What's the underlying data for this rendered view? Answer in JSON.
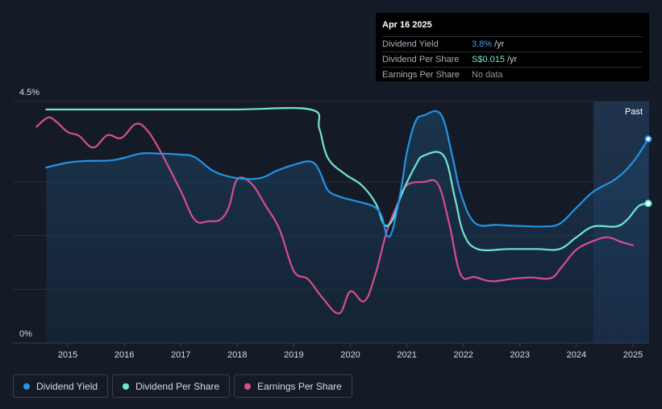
{
  "tooltip": {
    "date": "Apr 16 2025",
    "rows": [
      {
        "name": "Dividend Yield",
        "value": "3.8%",
        "unit": "/yr"
      },
      {
        "name": "Dividend Per Share",
        "value": "S$0.015",
        "unit": "/yr"
      },
      {
        "name": "Earnings Per Share",
        "value": "No data",
        "unit": ""
      }
    ]
  },
  "past_label": "Past",
  "legend": [
    {
      "name": "Dividend Yield",
      "color": "#2394e6"
    },
    {
      "name": "Dividend Per Share",
      "color": "#6ee6d0"
    },
    {
      "name": "Earnings Per Share",
      "color": "#d64d8e"
    }
  ],
  "chart_data": {
    "type": "line",
    "title": "",
    "xlabel": "",
    "ylabel": "",
    "ylim": [
      0,
      4.5
    ],
    "y_tick_labels": [
      "4.5%",
      "0%"
    ],
    "x_tick_labels": [
      "2015",
      "2016",
      "2017",
      "2018",
      "2019",
      "2020",
      "2021",
      "2022",
      "2023",
      "2024",
      "2025"
    ],
    "grid": true,
    "legend_position": "bottom-left",
    "past_region_start": 2024.3,
    "series": [
      {
        "name": "Dividend Yield",
        "color": "#2394e6",
        "area": true,
        "points": [
          [
            2014.62,
            3.27
          ],
          [
            2015,
            3.36
          ],
          [
            2015.3,
            3.39
          ],
          [
            2015.75,
            3.4
          ],
          [
            2016,
            3.45
          ],
          [
            2016.3,
            3.53
          ],
          [
            2016.6,
            3.53
          ],
          [
            2017,
            3.51
          ],
          [
            2017.25,
            3.46
          ],
          [
            2017.6,
            3.19
          ],
          [
            2018,
            3.07
          ],
          [
            2018.4,
            3.07
          ],
          [
            2018.7,
            3.21
          ],
          [
            2019,
            3.32
          ],
          [
            2019.3,
            3.38
          ],
          [
            2019.45,
            3.21
          ],
          [
            2019.6,
            2.85
          ],
          [
            2019.8,
            2.73
          ],
          [
            2020,
            2.67
          ],
          [
            2020.4,
            2.55
          ],
          [
            2020.55,
            2.37
          ],
          [
            2020.65,
            2.0
          ],
          [
            2020.75,
            2.12
          ],
          [
            2020.9,
            2.88
          ],
          [
            2021,
            3.55
          ],
          [
            2021.15,
            4.12
          ],
          [
            2021.3,
            4.24
          ],
          [
            2021.6,
            4.26
          ],
          [
            2021.8,
            3.5
          ],
          [
            2021.95,
            2.8
          ],
          [
            2022.2,
            2.24
          ],
          [
            2022.6,
            2.2
          ],
          [
            2023,
            2.18
          ],
          [
            2023.4,
            2.17
          ],
          [
            2023.7,
            2.22
          ],
          [
            2024,
            2.52
          ],
          [
            2024.3,
            2.82
          ],
          [
            2024.7,
            3.06
          ],
          [
            2025,
            3.37
          ],
          [
            2025.27,
            3.8
          ]
        ]
      },
      {
        "name": "Dividend Per Share",
        "color": "#6ee6d0",
        "area": false,
        "points": [
          [
            2014.62,
            4.35
          ],
          [
            2016,
            4.35
          ],
          [
            2017,
            4.35
          ],
          [
            2018,
            4.35
          ],
          [
            2019.3,
            4.35
          ],
          [
            2019.45,
            4.0
          ],
          [
            2019.6,
            3.45
          ],
          [
            2019.9,
            3.15
          ],
          [
            2020.2,
            2.94
          ],
          [
            2020.45,
            2.6
          ],
          [
            2020.6,
            2.2
          ],
          [
            2020.75,
            2.3
          ],
          [
            2020.9,
            2.75
          ],
          [
            2021.15,
            3.3
          ],
          [
            2021.3,
            3.49
          ],
          [
            2021.65,
            3.49
          ],
          [
            2021.85,
            2.7
          ],
          [
            2022,
            2.05
          ],
          [
            2022.25,
            1.75
          ],
          [
            2022.8,
            1.75
          ],
          [
            2023.3,
            1.75
          ],
          [
            2023.7,
            1.75
          ],
          [
            2024,
            1.97
          ],
          [
            2024.3,
            2.17
          ],
          [
            2024.7,
            2.17
          ],
          [
            2024.9,
            2.3
          ],
          [
            2025.1,
            2.55
          ],
          [
            2025.27,
            2.6
          ]
        ]
      },
      {
        "name": "Earnings Per Share",
        "color": "#d64d8e",
        "area": false,
        "points": [
          [
            2014.45,
            4.03
          ],
          [
            2014.65,
            4.2
          ],
          [
            2014.8,
            4.12
          ],
          [
            2015,
            3.93
          ],
          [
            2015.2,
            3.86
          ],
          [
            2015.45,
            3.64
          ],
          [
            2015.7,
            3.87
          ],
          [
            2015.95,
            3.82
          ],
          [
            2016.2,
            4.08
          ],
          [
            2016.4,
            3.97
          ],
          [
            2016.65,
            3.55
          ],
          [
            2017,
            2.83
          ],
          [
            2017.25,
            2.29
          ],
          [
            2017.5,
            2.27
          ],
          [
            2017.7,
            2.3
          ],
          [
            2017.85,
            2.53
          ],
          [
            2018,
            3.05
          ],
          [
            2018.25,
            2.97
          ],
          [
            2018.5,
            2.56
          ],
          [
            2018.75,
            2.11
          ],
          [
            2019,
            1.34
          ],
          [
            2019.25,
            1.19
          ],
          [
            2019.5,
            0.85
          ],
          [
            2019.8,
            0.55
          ],
          [
            2020,
            0.96
          ],
          [
            2020.25,
            0.78
          ],
          [
            2020.45,
            1.3
          ],
          [
            2020.65,
            2.1
          ],
          [
            2020.85,
            2.62
          ],
          [
            2021,
            2.94
          ],
          [
            2021.3,
            3.0
          ],
          [
            2021.55,
            2.96
          ],
          [
            2021.75,
            2.22
          ],
          [
            2021.95,
            1.28
          ],
          [
            2022.2,
            1.23
          ],
          [
            2022.5,
            1.15
          ],
          [
            2022.9,
            1.2
          ],
          [
            2023.2,
            1.22
          ],
          [
            2023.55,
            1.21
          ],
          [
            2023.75,
            1.43
          ],
          [
            2024,
            1.74
          ],
          [
            2024.3,
            1.9
          ],
          [
            2024.55,
            1.97
          ],
          [
            2024.8,
            1.88
          ],
          [
            2025,
            1.82
          ]
        ]
      }
    ]
  }
}
